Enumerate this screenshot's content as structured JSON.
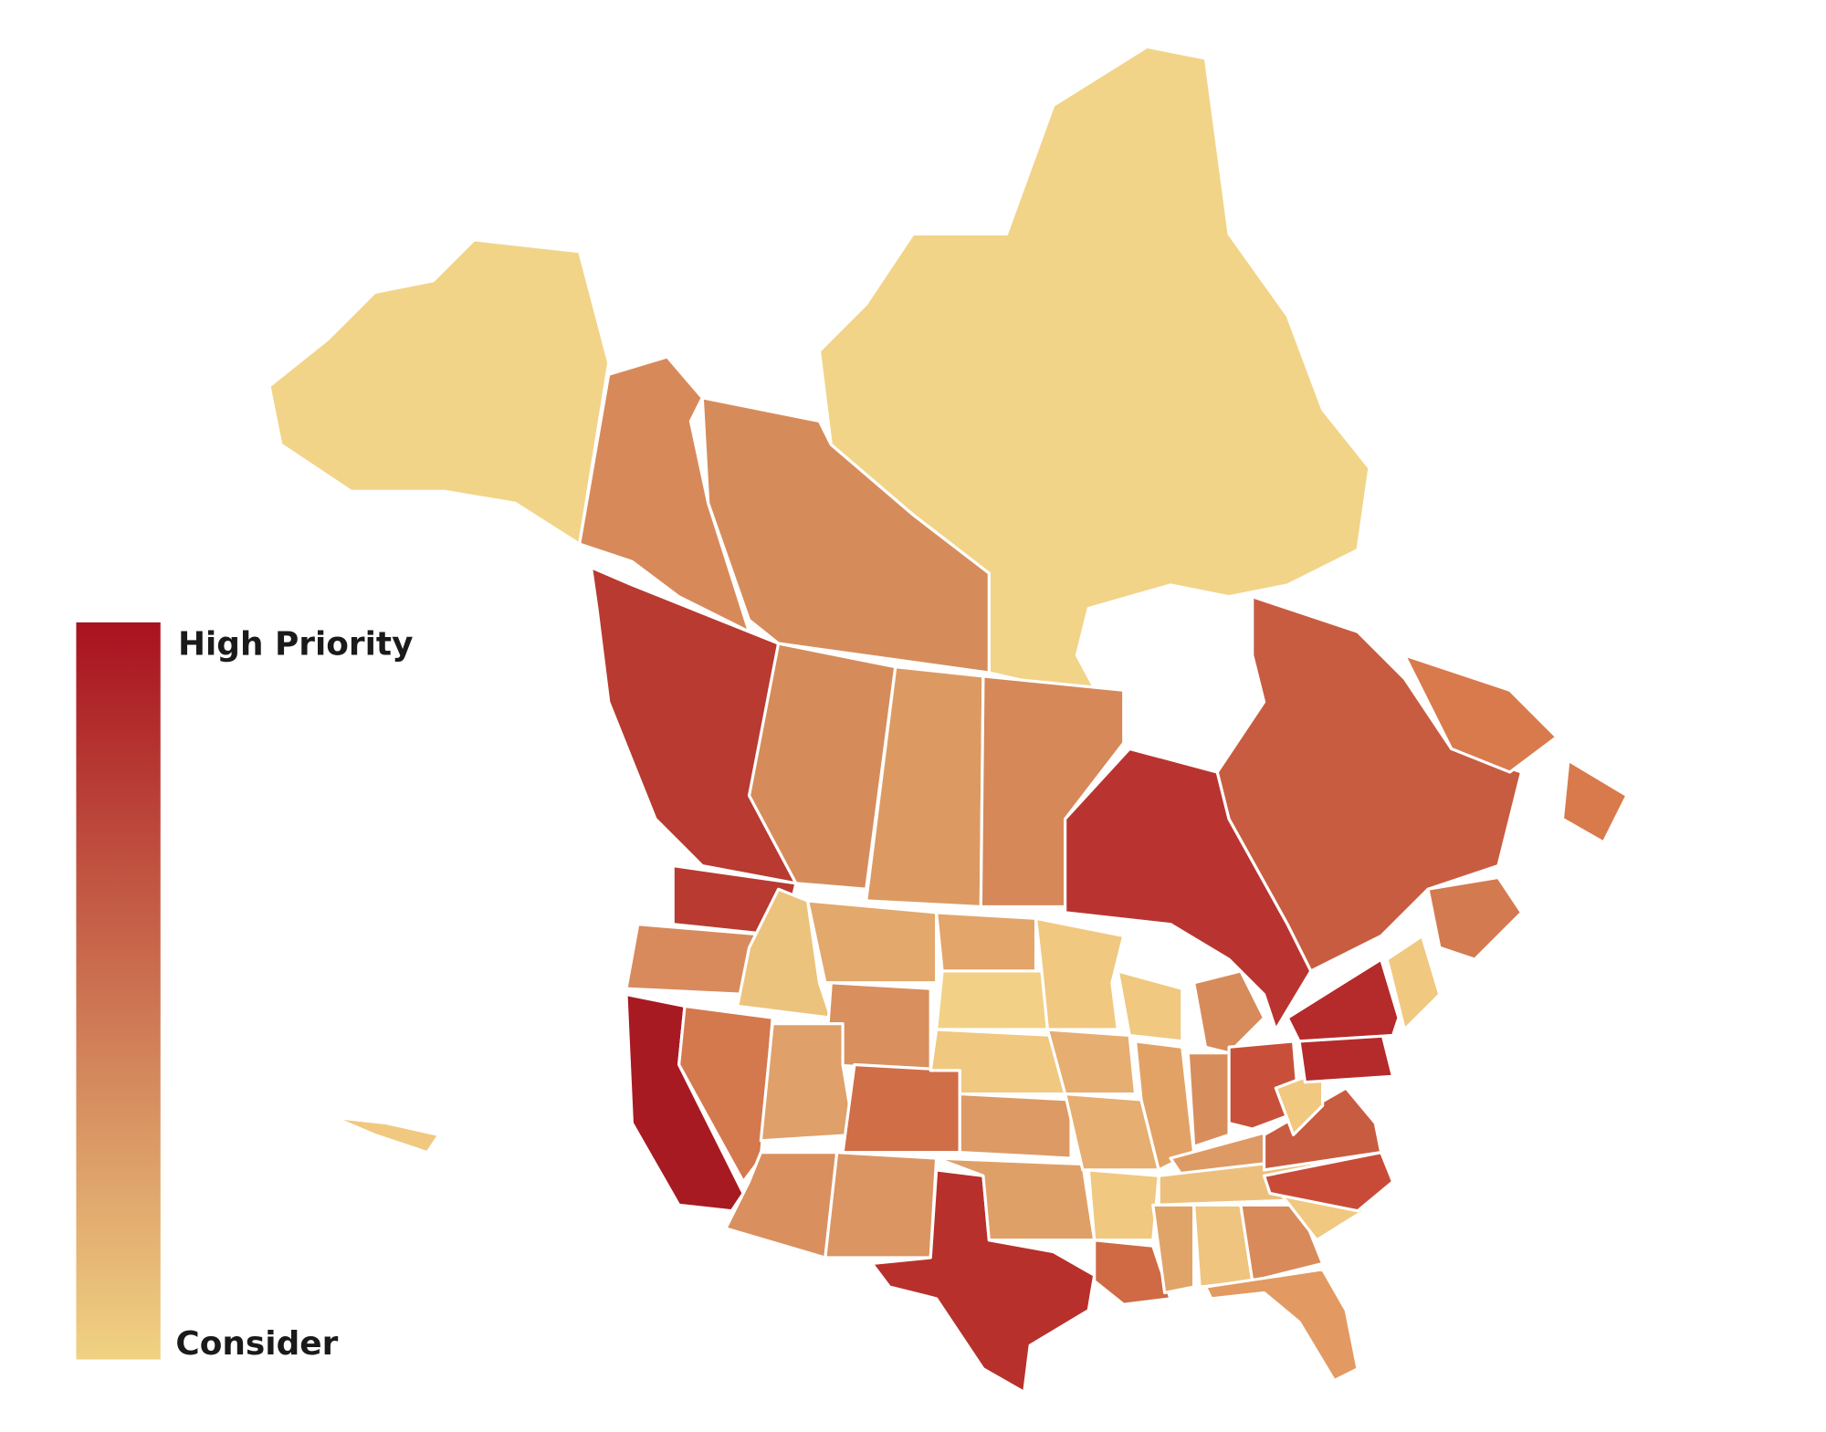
{
  "legend": {
    "high_label": "High Priority",
    "low_label": "Consider",
    "high_color": "#a8121f",
    "low_color": "#f0d283"
  }
}
